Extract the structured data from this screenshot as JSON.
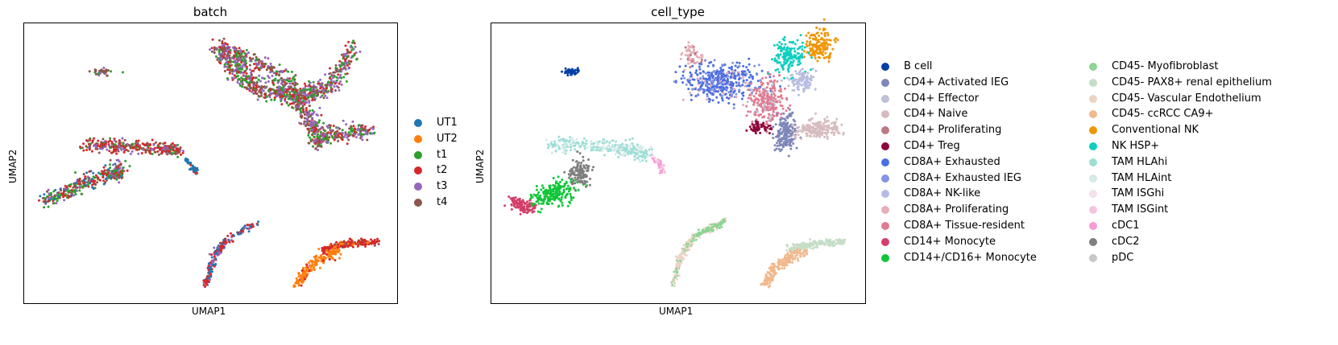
{
  "chart_data": [
    {
      "type": "scatter",
      "title": "batch",
      "xlabel": "UMAP1",
      "ylabel": "UMAP2",
      "xticks": [],
      "yticks": [],
      "grid": false,
      "legend_position": "right",
      "legend_title": "",
      "categories": [
        {
          "name": "UT1",
          "color": "#1f77b4"
        },
        {
          "name": "UT2",
          "color": "#ff7f0e"
        },
        {
          "name": "t1",
          "color": "#2ca02c"
        },
        {
          "name": "t2",
          "color": "#d62728"
        },
        {
          "name": "t3",
          "color": "#9467bd"
        },
        {
          "name": "t4",
          "color": "#8c564b"
        }
      ]
    },
    {
      "type": "scatter",
      "title": "cell_type",
      "xlabel": "UMAP1",
      "ylabel": "UMAP2",
      "xticks": [],
      "yticks": [],
      "grid": false,
      "legend_position": "right",
      "legend_title": "",
      "categories": [
        {
          "name": "B cell",
          "color": "#023fa5"
        },
        {
          "name": "CD4+ Activated IEG",
          "color": "#7d87b9"
        },
        {
          "name": "CD4+ Effector",
          "color": "#bec1d4"
        },
        {
          "name": "CD4+ Naive",
          "color": "#d6bcc0"
        },
        {
          "name": "CD4+ Proliferating",
          "color": "#bb7784"
        },
        {
          "name": "CD4+ Treg",
          "color": "#8e063b"
        },
        {
          "name": "CD8A+ Exhausted",
          "color": "#4a6fe3"
        },
        {
          "name": "CD8A+ Exhausted IEG",
          "color": "#8595e1"
        },
        {
          "name": "CD8A+ NK-like",
          "color": "#b5bbe3"
        },
        {
          "name": "CD8A+ Proliferating",
          "color": "#e6afb9"
        },
        {
          "name": "CD8A+ Tissue-resident",
          "color": "#e07b91"
        },
        {
          "name": "CD14+ Monocyte",
          "color": "#d33f6a"
        },
        {
          "name": "CD14+/CD16+ Monocyte",
          "color": "#11c638"
        },
        {
          "name": "CD45- Myofibroblast",
          "color": "#8dd593"
        },
        {
          "name": "CD45- PAX8+ renal epithelium",
          "color": "#c6dec7"
        },
        {
          "name": "CD45- Vascular Endothelium",
          "color": "#ead3c6"
        },
        {
          "name": "CD45- ccRCC CA9+",
          "color": "#f0b98d"
        },
        {
          "name": "Conventional NK",
          "color": "#ef9708"
        },
        {
          "name": "NK HSP+",
          "color": "#0fcfc0"
        },
        {
          "name": "TAM HLAhi",
          "color": "#9cded6"
        },
        {
          "name": "TAM HLAint",
          "color": "#d5eae7"
        },
        {
          "name": "TAM ISGhi",
          "color": "#f3e1eb"
        },
        {
          "name": "TAM ISGint",
          "color": "#f6c4e1"
        },
        {
          "name": "cDC1",
          "color": "#f79cd4"
        },
        {
          "name": "cDC2",
          "color": "#7f7f7f"
        },
        {
          "name": "pDC",
          "color": "#c7c7c7"
        }
      ]
    }
  ]
}
